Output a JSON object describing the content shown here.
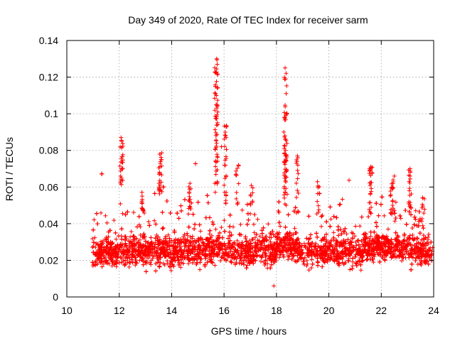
{
  "chart_data": {
    "type": "scatter",
    "title": "Day 349 of 2020, Rate Of TEC Index for receiver sarm",
    "xlabel": "GPS time / hours",
    "ylabel": "ROTI / TECUs",
    "xlim": [
      10,
      24
    ],
    "ylim": [
      0,
      0.14
    ],
    "xticks": [
      "10",
      "12",
      "14",
      "16",
      "18",
      "20",
      "22",
      "24"
    ],
    "yticks": [
      "0",
      "0.02",
      "0.04",
      "0.06",
      "0.08",
      "0.1",
      "0.12",
      "0.14"
    ],
    "grid": true,
    "marker": "+",
    "color": "#ff0000",
    "series": [
      {
        "name": "ROTI",
        "summary": "dense cloud of ~7000 points between 11.0 h and 24.0 h, mostly 0.01–0.045 TECU/s",
        "highlights": [
          {
            "x": 12.07,
            "y": 0.087
          },
          {
            "x": 12.09,
            "y": 0.085
          },
          {
            "x": 13.55,
            "y": 0.078
          },
          {
            "x": 13.6,
            "y": 0.075
          },
          {
            "x": 15.72,
            "y": 0.13
          },
          {
            "x": 15.74,
            "y": 0.127
          },
          {
            "x": 15.68,
            "y": 0.115
          },
          {
            "x": 15.7,
            "y": 0.105
          },
          {
            "x": 15.76,
            "y": 0.101
          },
          {
            "x": 16.1,
            "y": 0.093
          },
          {
            "x": 16.08,
            "y": 0.087
          },
          {
            "x": 15.9,
            "y": 0.082
          },
          {
            "x": 18.33,
            "y": 0.125
          },
          {
            "x": 18.35,
            "y": 0.119
          },
          {
            "x": 18.37,
            "y": 0.111
          },
          {
            "x": 18.4,
            "y": 0.1
          },
          {
            "x": 18.28,
            "y": 0.09
          },
          {
            "x": 18.8,
            "y": 0.077
          },
          {
            "x": 16.55,
            "y": 0.072
          },
          {
            "x": 21.6,
            "y": 0.071
          },
          {
            "x": 22.5,
            "y": 0.066
          },
          {
            "x": 23.1,
            "y": 0.07
          },
          {
            "x": 14.7,
            "y": 0.062
          },
          {
            "x": 17.9,
            "y": 0.006
          }
        ]
      }
    ]
  }
}
